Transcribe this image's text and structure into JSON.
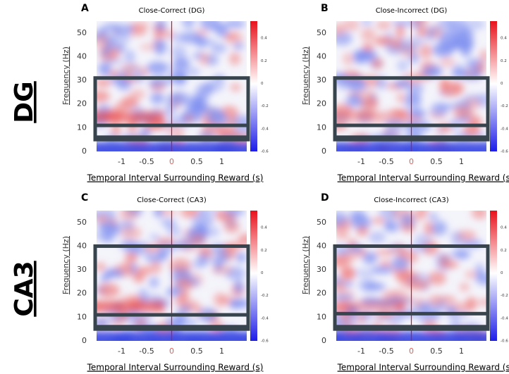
{
  "row_labels": [
    "DG",
    "CA3"
  ],
  "panels": [
    {
      "letter": "A",
      "title": "Close-Correct (DG)",
      "y_label": "Frequency (Hz)",
      "x_label": "Temporal Interval Surrounding Reward (s)",
      "y_ticks": [
        "0",
        "10",
        "20",
        "30",
        "40",
        "50"
      ],
      "x_ticks": [
        "-1",
        "-0.5",
        "0",
        "0.5",
        "1"
      ],
      "colorbar_ticks": [
        "0.4",
        "0.2",
        "0",
        "-0.2",
        "-0.4",
        "-0.6"
      ]
    },
    {
      "letter": "B",
      "title": "Close-Incorrect (DG)",
      "y_label": "Frequency (Hz)",
      "x_label": "Temporal Interval Surrounding Reward (s)",
      "y_ticks": [
        "0",
        "10",
        "20",
        "30",
        "40",
        "50"
      ],
      "x_ticks": [
        "-1",
        "-0.5",
        "0",
        "0.5",
        "1"
      ],
      "colorbar_ticks": [
        "0.4",
        "0.2",
        "0",
        "-0.2",
        "-0.4",
        "-0.6"
      ]
    },
    {
      "letter": "C",
      "title": "Close-Correct (CA3)",
      "y_label": "Frequency (Hz)",
      "x_label": "Temporal Interval Surrounding Reward (s)",
      "y_ticks": [
        "0",
        "10",
        "20",
        "30",
        "40",
        "50"
      ],
      "x_ticks": [
        "-1",
        "-0.5",
        "0",
        "0.5",
        "1"
      ],
      "colorbar_ticks": [
        "0.4",
        "0.2",
        "0",
        "-0.2",
        "-0.4",
        "-0.6"
      ]
    },
    {
      "letter": "D",
      "title": "Close-Incorrect (CA3)",
      "y_label": "Frequency (Hz)",
      "x_label": "Temporal Interval Surrounding Reward (s)",
      "y_ticks": [
        "0",
        "10",
        "20",
        "30",
        "40",
        "50"
      ],
      "x_ticks": [
        "-1",
        "-0.5",
        "0",
        "0.5",
        "1"
      ],
      "colorbar_ticks": [
        "0.4",
        "0.2",
        "0",
        "-0.2",
        "-0.4",
        "-0.6"
      ]
    }
  ]
}
